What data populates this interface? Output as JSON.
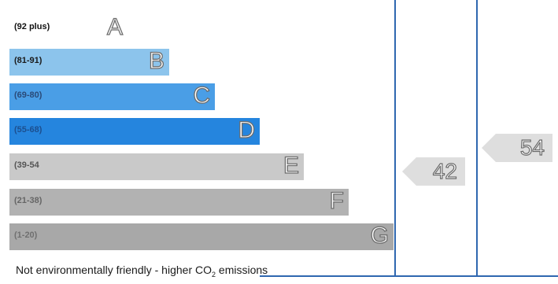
{
  "ratings": [
    {
      "range": "(92 plus)",
      "letter": "A",
      "color": "#ffffff",
      "text_color": "#111111"
    },
    {
      "range": "(81-91)",
      "letter": "B",
      "color": "#8cc4ec",
      "text_color": "#1b1b1b"
    },
    {
      "range": "(69-80)",
      "letter": "C",
      "color": "#4a9ee6",
      "text_color": "#2a4a78"
    },
    {
      "range": "(55-68)",
      "letter": "D",
      "color": "#2585de",
      "text_color": "#1c4f8f"
    },
    {
      "range": "(39-54",
      "letter": "E",
      "color": "#c9c9c9",
      "text_color": "#555555"
    },
    {
      "range": "(21-38)",
      "letter": "F",
      "color": "#b2b2b2",
      "text_color": "#666666"
    },
    {
      "range": "(1-20)",
      "letter": "G",
      "color": "#a8a8a8",
      "text_color": "#707070"
    }
  ],
  "current": {
    "value": "42"
  },
  "potential": {
    "value": "54"
  },
  "footer": {
    "text": "Not environmentally friendly - higher CO",
    "sub": "2",
    "suffix": " emissions"
  },
  "colors": {
    "border": "#2f67b0",
    "arrow_fill": "#dedede"
  }
}
